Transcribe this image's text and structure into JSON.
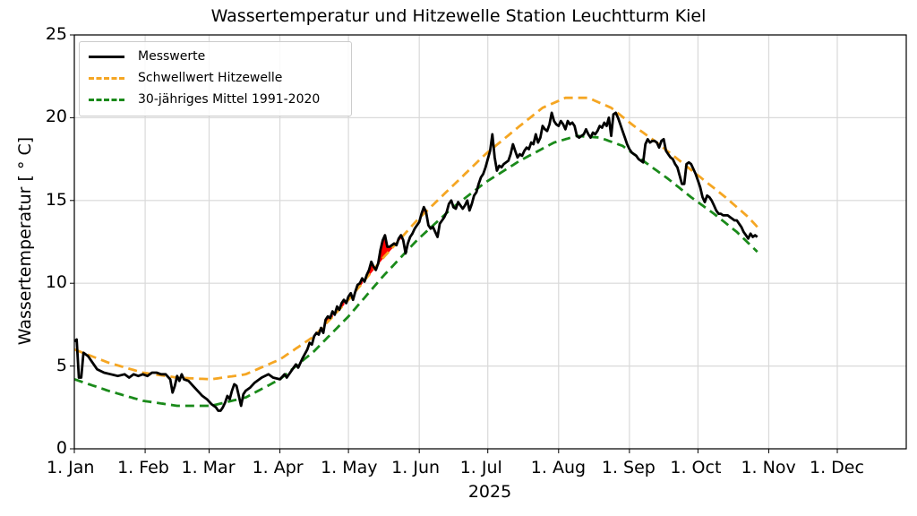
{
  "chart_data": {
    "type": "line",
    "title": "Wassertemperatur und Hitzewelle Station Leuchtturm Kiel",
    "xlabel": "2025",
    "ylabel": "Wassertemperatur [$^\\circ$C]",
    "ylabel_display": "Wassertemperatur [ ° C]",
    "ylim": [
      0,
      25
    ],
    "yticks": [
      0,
      5,
      10,
      15,
      20,
      25
    ],
    "xlim_days": [
      0,
      364
    ],
    "xticks": [
      {
        "label": "1. Jan",
        "day": 0
      },
      {
        "label": "1. Feb",
        "day": 31
      },
      {
        "label": "1. Mar",
        "day": 59
      },
      {
        "label": "1. Apr",
        "day": 90
      },
      {
        "label": "1. May",
        "day": 120
      },
      {
        "label": "1. Jun",
        "day": 151
      },
      {
        "label": "1. Jul",
        "day": 181
      },
      {
        "label": "1. Aug",
        "day": 212
      },
      {
        "label": "1. Sep",
        "day": 243
      },
      {
        "label": "1. Oct",
        "day": 273
      },
      {
        "label": "1. Nov",
        "day": 304
      },
      {
        "label": "1. Dec",
        "day": 334
      }
    ],
    "grid": true,
    "legend_position": "upper left",
    "legend": [
      {
        "label": "Messwerte",
        "style": "solid",
        "color": "#000000"
      },
      {
        "label": "Schwellwert Hitzewelle",
        "style": "dashed",
        "color": "#f5a623"
      },
      {
        "label": "30-jähriges Mittel 1991-2020",
        "style": "dashed",
        "color": "#1a8a1a"
      }
    ],
    "heatwave_fill_color": "#ff0000",
    "series": [
      {
        "name": "Messwerte",
        "color": "#000000",
        "style": "solid",
        "points": [
          [
            0,
            6.5
          ],
          [
            1,
            6.6
          ],
          [
            2,
            4.3
          ],
          [
            3,
            4.3
          ],
          [
            4,
            5.8
          ],
          [
            6,
            5.6
          ],
          [
            8,
            5.2
          ],
          [
            10,
            4.8
          ],
          [
            13,
            4.6
          ],
          [
            16,
            4.5
          ],
          [
            19,
            4.4
          ],
          [
            22,
            4.5
          ],
          [
            24,
            4.3
          ],
          [
            26,
            4.5
          ],
          [
            28,
            4.4
          ],
          [
            30,
            4.5
          ],
          [
            32,
            4.4
          ],
          [
            34,
            4.6
          ],
          [
            36,
            4.6
          ],
          [
            38,
            4.5
          ],
          [
            40,
            4.5
          ],
          [
            42,
            4.2
          ],
          [
            43,
            3.4
          ],
          [
            44,
            3.8
          ],
          [
            45,
            4.4
          ],
          [
            46,
            4.1
          ],
          [
            47,
            4.5
          ],
          [
            48,
            4.2
          ],
          [
            50,
            4.1
          ],
          [
            52,
            3.8
          ],
          [
            54,
            3.5
          ],
          [
            56,
            3.2
          ],
          [
            58,
            3.0
          ],
          [
            60,
            2.7
          ],
          [
            62,
            2.5
          ],
          [
            63,
            2.3
          ],
          [
            64,
            2.3
          ],
          [
            65,
            2.5
          ],
          [
            66,
            2.8
          ],
          [
            67,
            3.2
          ],
          [
            68,
            3.0
          ],
          [
            69,
            3.5
          ],
          [
            70,
            3.9
          ],
          [
            71,
            3.8
          ],
          [
            72,
            3.2
          ],
          [
            73,
            2.6
          ],
          [
            74,
            3.3
          ],
          [
            75,
            3.5
          ],
          [
            77,
            3.7
          ],
          [
            79,
            4.0
          ],
          [
            82,
            4.3
          ],
          [
            85,
            4.5
          ],
          [
            87,
            4.3
          ],
          [
            90,
            4.2
          ],
          [
            92,
            4.5
          ],
          [
            93,
            4.3
          ],
          [
            95,
            4.7
          ],
          [
            97,
            5.1
          ],
          [
            98,
            4.9
          ],
          [
            100,
            5.5
          ],
          [
            102,
            6.0
          ],
          [
            103,
            6.4
          ],
          [
            104,
            6.3
          ],
          [
            105,
            6.8
          ],
          [
            106,
            7.0
          ],
          [
            107,
            6.9
          ],
          [
            108,
            7.3
          ],
          [
            109,
            7.0
          ],
          [
            110,
            7.8
          ],
          [
            111,
            8.0
          ],
          [
            112,
            7.9
          ],
          [
            113,
            8.3
          ],
          [
            114,
            8.1
          ],
          [
            115,
            8.6
          ],
          [
            116,
            8.4
          ],
          [
            117,
            8.8
          ],
          [
            118,
            9.0
          ],
          [
            119,
            8.8
          ],
          [
            120,
            9.2
          ],
          [
            121,
            9.4
          ],
          [
            122,
            9.0
          ],
          [
            123,
            9.5
          ],
          [
            124,
            9.9
          ],
          [
            125,
            10.0
          ],
          [
            126,
            10.3
          ],
          [
            127,
            10.1
          ],
          [
            128,
            10.5
          ],
          [
            129,
            10.8
          ],
          [
            130,
            11.3
          ],
          [
            131,
            11.0
          ],
          [
            132,
            10.8
          ],
          [
            133,
            11.2
          ],
          [
            134,
            12.0
          ],
          [
            135,
            12.6
          ],
          [
            136,
            12.9
          ],
          [
            137,
            12.2
          ],
          [
            138,
            12.2
          ],
          [
            139,
            12.3
          ],
          [
            140,
            12.4
          ],
          [
            141,
            12.3
          ],
          [
            142,
            12.7
          ],
          [
            143,
            12.9
          ],
          [
            144,
            12.6
          ],
          [
            145,
            11.8
          ],
          [
            146,
            12.4
          ],
          [
            147,
            12.8
          ],
          [
            148,
            13.0
          ],
          [
            149,
            13.3
          ],
          [
            150,
            13.5
          ],
          [
            151,
            13.7
          ],
          [
            152,
            14.2
          ],
          [
            153,
            14.6
          ],
          [
            154,
            14.3
          ],
          [
            155,
            13.5
          ],
          [
            156,
            13.3
          ],
          [
            157,
            13.4
          ],
          [
            158,
            13.1
          ],
          [
            159,
            12.8
          ],
          [
            160,
            13.6
          ],
          [
            161,
            13.8
          ],
          [
            162,
            14.0
          ],
          [
            163,
            14.3
          ],
          [
            164,
            14.8
          ],
          [
            165,
            15.0
          ],
          [
            166,
            14.6
          ],
          [
            167,
            14.5
          ],
          [
            168,
            14.9
          ],
          [
            169,
            14.7
          ],
          [
            170,
            14.5
          ],
          [
            171,
            14.7
          ],
          [
            172,
            15.0
          ],
          [
            173,
            14.4
          ],
          [
            174,
            14.8
          ],
          [
            175,
            15.3
          ],
          [
            176,
            15.5
          ],
          [
            177,
            16.0
          ],
          [
            178,
            16.4
          ],
          [
            179,
            16.6
          ],
          [
            180,
            17.0
          ],
          [
            181,
            17.5
          ],
          [
            182,
            18.0
          ],
          [
            183,
            19.0
          ],
          [
            184,
            17.6
          ],
          [
            185,
            16.8
          ],
          [
            186,
            17.1
          ],
          [
            187,
            17.0
          ],
          [
            188,
            17.2
          ],
          [
            189,
            17.3
          ],
          [
            190,
            17.4
          ],
          [
            191,
            17.8
          ],
          [
            192,
            18.4
          ],
          [
            193,
            18.0
          ],
          [
            194,
            17.6
          ],
          [
            195,
            17.8
          ],
          [
            196,
            17.7
          ],
          [
            197,
            18.0
          ],
          [
            198,
            18.2
          ],
          [
            199,
            18.1
          ],
          [
            200,
            18.5
          ],
          [
            201,
            18.4
          ],
          [
            202,
            19.0
          ],
          [
            203,
            18.5
          ],
          [
            204,
            18.8
          ],
          [
            205,
            19.5
          ],
          [
            206,
            19.3
          ],
          [
            207,
            19.2
          ],
          [
            208,
            19.6
          ],
          [
            209,
            20.3
          ],
          [
            210,
            19.8
          ],
          [
            211,
            19.6
          ],
          [
            212,
            19.5
          ],
          [
            213,
            19.8
          ],
          [
            214,
            19.6
          ],
          [
            215,
            19.3
          ],
          [
            216,
            19.8
          ],
          [
            217,
            19.6
          ],
          [
            218,
            19.7
          ],
          [
            219,
            19.5
          ],
          [
            220,
            18.9
          ],
          [
            221,
            18.8
          ],
          [
            222,
            18.9
          ],
          [
            223,
            19.0
          ],
          [
            224,
            19.3
          ],
          [
            225,
            19.0
          ],
          [
            226,
            18.8
          ],
          [
            227,
            19.1
          ],
          [
            228,
            19.0
          ],
          [
            229,
            19.2
          ],
          [
            230,
            19.5
          ],
          [
            231,
            19.4
          ],
          [
            232,
            19.7
          ],
          [
            233,
            19.5
          ],
          [
            234,
            20.0
          ],
          [
            235,
            18.9
          ],
          [
            236,
            20.2
          ],
          [
            237,
            20.3
          ],
          [
            238,
            20.0
          ],
          [
            239,
            19.6
          ],
          [
            240,
            19.2
          ],
          [
            241,
            18.8
          ],
          [
            242,
            18.4
          ],
          [
            243,
            18.1
          ],
          [
            244,
            17.9
          ],
          [
            245,
            17.8
          ],
          [
            246,
            17.7
          ],
          [
            247,
            17.5
          ],
          [
            248,
            17.4
          ],
          [
            249,
            17.3
          ],
          [
            250,
            18.4
          ],
          [
            251,
            18.7
          ],
          [
            252,
            18.5
          ],
          [
            253,
            18.6
          ],
          [
            254,
            18.6
          ],
          [
            255,
            18.5
          ],
          [
            256,
            18.2
          ],
          [
            257,
            18.6
          ],
          [
            258,
            18.7
          ],
          [
            259,
            18.0
          ],
          [
            260,
            17.8
          ],
          [
            261,
            17.6
          ],
          [
            262,
            17.5
          ],
          [
            263,
            17.2
          ],
          [
            264,
            17.0
          ],
          [
            265,
            16.5
          ],
          [
            266,
            16.0
          ],
          [
            267,
            16.0
          ],
          [
            268,
            17.2
          ],
          [
            269,
            17.3
          ],
          [
            270,
            17.2
          ],
          [
            271,
            16.9
          ],
          [
            272,
            16.6
          ],
          [
            273,
            16.2
          ],
          [
            274,
            15.8
          ],
          [
            275,
            15.2
          ],
          [
            276,
            14.9
          ],
          [
            277,
            15.3
          ],
          [
            278,
            15.2
          ],
          [
            279,
            15.0
          ],
          [
            280,
            14.7
          ],
          [
            281,
            14.4
          ],
          [
            282,
            14.2
          ],
          [
            283,
            14.2
          ],
          [
            284,
            14.1
          ],
          [
            285,
            14.1
          ],
          [
            286,
            14.1
          ],
          [
            287,
            14.0
          ],
          [
            288,
            13.9
          ],
          [
            289,
            13.8
          ],
          [
            290,
            13.8
          ],
          [
            291,
            13.6
          ],
          [
            292,
            13.4
          ],
          [
            293,
            13.1
          ],
          [
            294,
            12.9
          ],
          [
            295,
            12.7
          ],
          [
            296,
            13.0
          ],
          [
            297,
            12.8
          ],
          [
            298,
            12.9
          ],
          [
            299,
            12.8
          ]
        ]
      },
      {
        "name": "Schwellwert Hitzewelle",
        "color": "#f5a623",
        "style": "dashed",
        "points": [
          [
            0,
            6.0
          ],
          [
            15,
            5.2
          ],
          [
            30,
            4.6
          ],
          [
            45,
            4.3
          ],
          [
            60,
            4.2
          ],
          [
            75,
            4.5
          ],
          [
            90,
            5.4
          ],
          [
            105,
            6.8
          ],
          [
            120,
            9.0
          ],
          [
            135,
            11.5
          ],
          [
            150,
            13.8
          ],
          [
            165,
            15.8
          ],
          [
            180,
            17.8
          ],
          [
            195,
            19.5
          ],
          [
            205,
            20.6
          ],
          [
            215,
            21.2
          ],
          [
            225,
            21.2
          ],
          [
            235,
            20.6
          ],
          [
            245,
            19.5
          ],
          [
            255,
            18.5
          ],
          [
            265,
            17.4
          ],
          [
            275,
            16.3
          ],
          [
            285,
            15.2
          ],
          [
            295,
            14.0
          ],
          [
            299,
            13.4
          ]
        ]
      },
      {
        "name": "30-jähriges Mittel 1991-2020",
        "color": "#1a8a1a",
        "style": "dashed",
        "points": [
          [
            0,
            4.2
          ],
          [
            15,
            3.5
          ],
          [
            30,
            2.9
          ],
          [
            45,
            2.6
          ],
          [
            60,
            2.6
          ],
          [
            75,
            3.1
          ],
          [
            90,
            4.2
          ],
          [
            105,
            5.9
          ],
          [
            120,
            8.0
          ],
          [
            135,
            10.4
          ],
          [
            150,
            12.6
          ],
          [
            165,
            14.5
          ],
          [
            180,
            16.1
          ],
          [
            195,
            17.4
          ],
          [
            210,
            18.5
          ],
          [
            220,
            18.9
          ],
          [
            230,
            18.8
          ],
          [
            240,
            18.3
          ],
          [
            250,
            17.3
          ],
          [
            260,
            16.3
          ],
          [
            270,
            15.2
          ],
          [
            280,
            14.2
          ],
          [
            290,
            13.1
          ],
          [
            299,
            11.9
          ]
        ]
      }
    ]
  }
}
